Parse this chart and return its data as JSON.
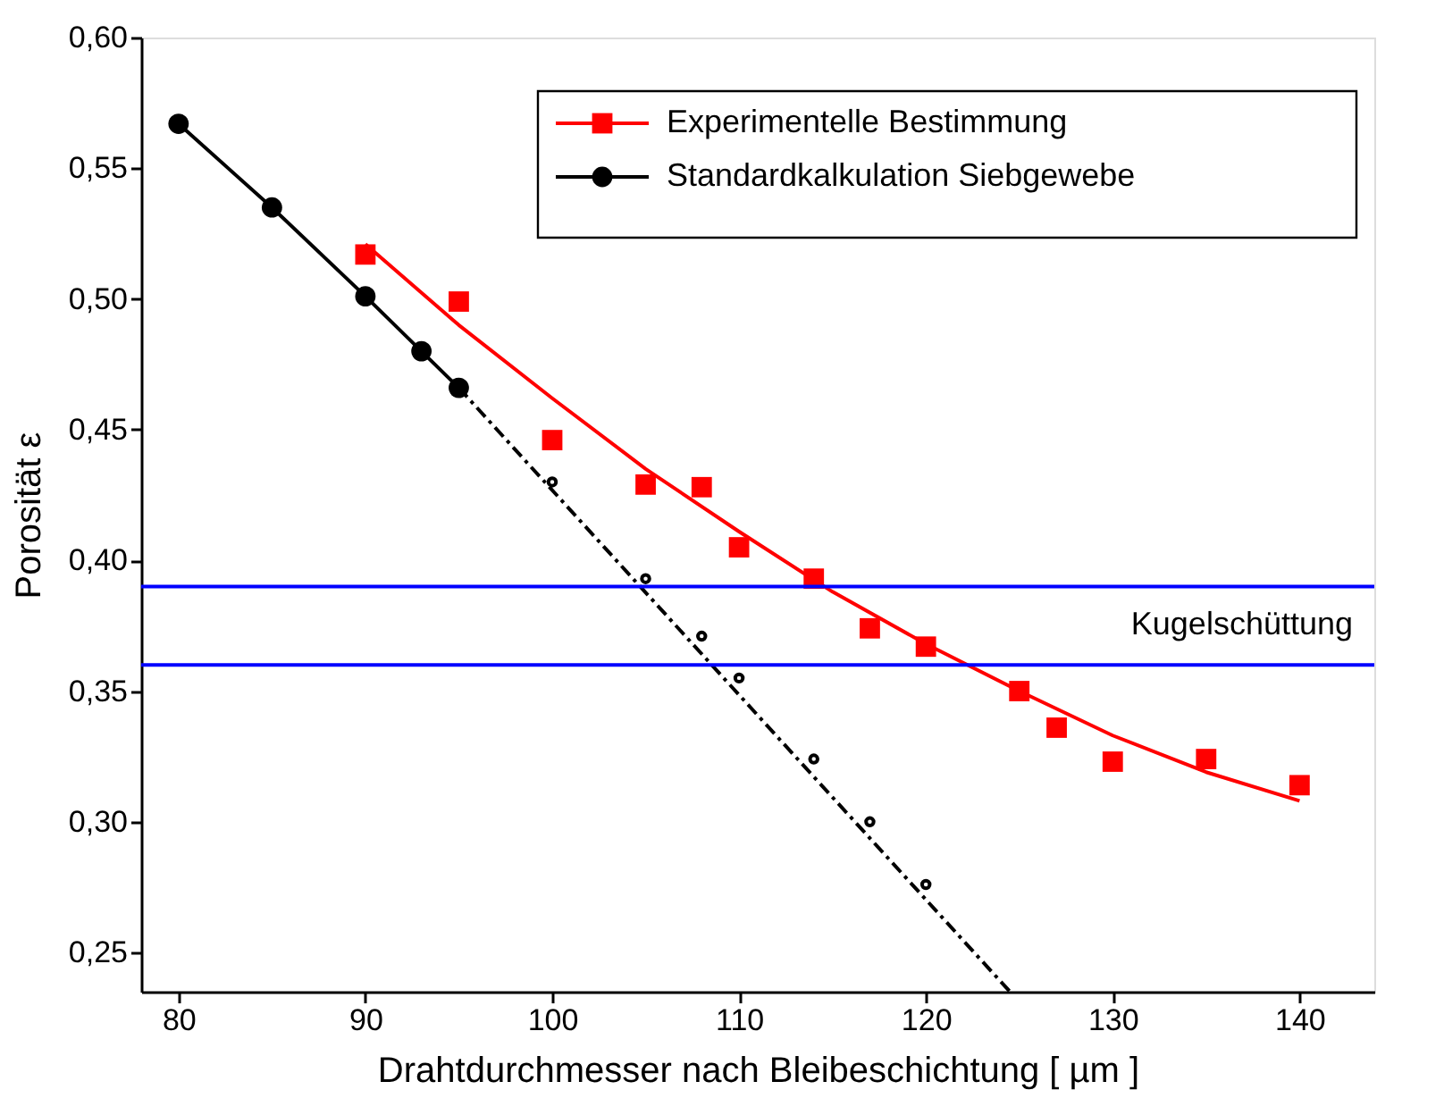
{
  "chart_data": {
    "type": "line",
    "xlabel": "Drahtdurchmesser nach Bleibeschichtung  [ µm ]",
    "ylabel": "Porosität  ε",
    "xlim": [
      78,
      144
    ],
    "xticks": [
      80,
      90,
      100,
      110,
      120,
      130,
      140
    ],
    "ylim": [
      0.235,
      0.6
    ],
    "yticks": [
      {
        "value": 0.25,
        "label": "0,25"
      },
      {
        "value": 0.3,
        "label": "0,30"
      },
      {
        "value": 0.35,
        "label": "0,35"
      },
      {
        "value": 0.4,
        "label": "0,40"
      },
      {
        "value": 0.45,
        "label": "0,45"
      },
      {
        "value": 0.5,
        "label": "0,50"
      },
      {
        "value": 0.55,
        "label": "0,55"
      },
      {
        "value": 0.6,
        "label": "0,60"
      }
    ],
    "grid": false,
    "legend": "top right",
    "series": [
      {
        "name": "Experimentelle Bestimmung",
        "type": "scatter",
        "marker": "square",
        "color": "#ff0000",
        "x": [
          90,
          95,
          100,
          105,
          108,
          110,
          114,
          117,
          120,
          125,
          127,
          130,
          135,
          140
        ],
        "values": [
          0.517,
          0.499,
          0.446,
          0.429,
          0.428,
          0.405,
          0.393,
          0.374,
          0.367,
          0.35,
          0.336,
          0.323,
          0.324,
          0.314
        ]
      },
      {
        "marker": "none",
        "color": "#ff0000",
        "line_style": "solid",
        "x": [
          90,
          95,
          100,
          105,
          110,
          115,
          120,
          125,
          130,
          135,
          140
        ],
        "values": [
          0.521,
          0.49,
          0.462,
          0.435,
          0.411,
          0.388,
          0.368,
          0.35,
          0.333,
          0.319,
          0.308
        ]
      },
      {
        "name": "Standardkalkulation Siebgewebe",
        "marker": "circle",
        "color": "#000000",
        "line_style": "solid",
        "x": [
          80,
          85,
          90,
          93,
          95
        ],
        "values": [
          0.567,
          0.535,
          0.501,
          0.48,
          0.466
        ]
      },
      {
        "marker": "none",
        "color": "#000000",
        "line_style": "dashed",
        "x": [
          95,
          124.5
        ],
        "values": [
          0.466,
          0.235
        ]
      },
      {
        "type": "scatter",
        "marker": "circle",
        "color": "#000000",
        "x": [
          100,
          105,
          108,
          110,
          114,
          117,
          120
        ],
        "values": [
          0.43,
          0.393,
          0.371,
          0.355,
          0.324,
          0.3,
          0.276
        ]
      }
    ],
    "ref_lines": [
      {
        "axis": "y",
        "value": 0.39,
        "color": "#0000ff"
      },
      {
        "axis": "y",
        "value": 0.36,
        "color": "#0000ff"
      }
    ],
    "annotations": [
      "Kugelschüttung"
    ]
  }
}
